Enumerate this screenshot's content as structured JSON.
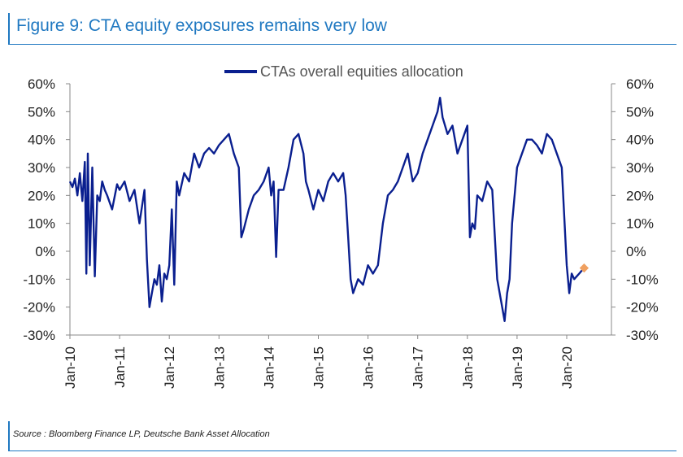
{
  "header": {
    "title": "Figure 9: CTA equity exposures remains very low"
  },
  "footer": {
    "source": "Source : Bloomberg Finance LP, Deutsche Bank Asset Allocation"
  },
  "colors": {
    "accent": "#1f78c1",
    "series": "#0a1f8f",
    "marker": "#f0a060"
  },
  "chart_data": {
    "type": "line",
    "title": "Figure 9: CTA equity exposures remains very low",
    "xlabel": "",
    "ylabel": "",
    "ylim": [
      -30,
      60
    ],
    "y_ticks": [
      "60%",
      "50%",
      "40%",
      "30%",
      "20%",
      "10%",
      "0%",
      "-10%",
      "-20%",
      "-30%"
    ],
    "y_tick_values": [
      60,
      50,
      40,
      30,
      20,
      10,
      0,
      -10,
      -20,
      -30
    ],
    "x_ticks": [
      "Jan-10",
      "Jan-11",
      "Jan-12",
      "Jan-13",
      "Jan-14",
      "Jan-15",
      "Jan-16",
      "Jan-17",
      "Jan-18",
      "Jan-19",
      "Jan-20"
    ],
    "xlim": [
      2010.0,
      2020.9
    ],
    "legend": {
      "position": "top-center",
      "entries": [
        "CTAs overall equities allocation"
      ]
    },
    "grid": false,
    "secondary_y_axis": true,
    "highlight_point": {
      "x": 2020.35,
      "y": -6
    },
    "series": [
      {
        "name": "CTAs overall equities allocation",
        "x": [
          2010.0,
          2010.05,
          2010.1,
          2010.15,
          2010.2,
          2010.25,
          2010.3,
          2010.33,
          2010.36,
          2010.4,
          2010.45,
          2010.5,
          2010.55,
          2010.6,
          2010.65,
          2010.7,
          2010.75,
          2010.85,
          2010.95,
          2011.0,
          2011.1,
          2011.2,
          2011.3,
          2011.4,
          2011.5,
          2011.55,
          2011.6,
          2011.65,
          2011.7,
          2011.75,
          2011.8,
          2011.85,
          2011.9,
          2011.95,
          2012.0,
          2012.05,
          2012.1,
          2012.15,
          2012.2,
          2012.3,
          2012.4,
          2012.5,
          2012.6,
          2012.7,
          2012.8,
          2012.9,
          2013.0,
          2013.1,
          2013.2,
          2013.3,
          2013.4,
          2013.45,
          2013.5,
          2013.6,
          2013.7,
          2013.8,
          2013.9,
          2014.0,
          2014.05,
          2014.1,
          2014.15,
          2014.2,
          2014.3,
          2014.4,
          2014.5,
          2014.6,
          2014.7,
          2014.75,
          2014.8,
          2014.9,
          2015.0,
          2015.1,
          2015.2,
          2015.3,
          2015.4,
          2015.5,
          2015.55,
          2015.6,
          2015.65,
          2015.7,
          2015.8,
          2015.9,
          2016.0,
          2016.1,
          2016.2,
          2016.3,
          2016.4,
          2016.5,
          2016.6,
          2016.7,
          2016.8,
          2016.9,
          2017.0,
          2017.1,
          2017.2,
          2017.3,
          2017.4,
          2017.45,
          2017.5,
          2017.6,
          2017.7,
          2017.8,
          2017.9,
          2018.0,
          2018.05,
          2018.1,
          2018.15,
          2018.2,
          2018.3,
          2018.4,
          2018.5,
          2018.6,
          2018.7,
          2018.75,
          2018.8,
          2018.85,
          2018.9,
          2018.95,
          2019.0,
          2019.1,
          2019.2,
          2019.3,
          2019.4,
          2019.5,
          2019.6,
          2019.7,
          2019.8,
          2019.9,
          2020.0,
          2020.05,
          2020.1,
          2020.15,
          2020.2,
          2020.25,
          2020.3,
          2020.35
        ],
        "values": [
          25,
          23,
          26,
          20,
          28,
          18,
          32,
          -8,
          35,
          -5,
          30,
          -9,
          20,
          18,
          25,
          22,
          20,
          15,
          24,
          22,
          25,
          18,
          22,
          10,
          22,
          -3,
          -20,
          -15,
          -10,
          -12,
          -5,
          -18,
          -8,
          -10,
          -5,
          15,
          -12,
          25,
          20,
          28,
          25,
          35,
          30,
          35,
          37,
          35,
          38,
          40,
          42,
          35,
          30,
          5,
          8,
          15,
          20,
          22,
          25,
          30,
          20,
          25,
          -2,
          22,
          22,
          30,
          40,
          42,
          35,
          25,
          22,
          15,
          22,
          18,
          25,
          28,
          25,
          28,
          20,
          5,
          -10,
          -15,
          -10,
          -12,
          -5,
          -8,
          -5,
          10,
          20,
          22,
          25,
          30,
          35,
          25,
          28,
          35,
          40,
          45,
          50,
          55,
          48,
          42,
          45,
          35,
          40,
          45,
          5,
          10,
          8,
          20,
          18,
          25,
          22,
          -10,
          -20,
          -25,
          -15,
          -10,
          10,
          20,
          30,
          35,
          40,
          40,
          38,
          35,
          42,
          40,
          35,
          30,
          -5,
          -15,
          -8,
          -10,
          -9,
          -8,
          -7,
          -6
        ]
      }
    ]
  }
}
